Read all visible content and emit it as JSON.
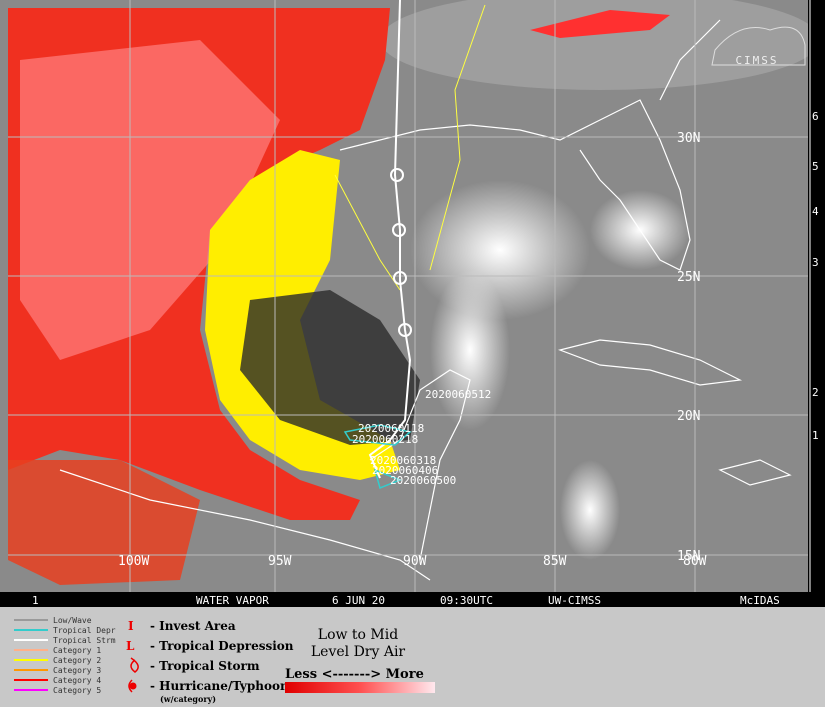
{
  "logo": "CIMSS",
  "lat_labels": [
    "30N",
    "25N",
    "20N",
    "15N"
  ],
  "lon_labels": [
    "100W",
    "95W",
    "90W",
    "85W",
    "80W"
  ],
  "track_labels": [
    "2020060512",
    "2020060118",
    "2020060218",
    "2020060318",
    "2020060406",
    "2020060500"
  ],
  "side_scale": [
    "6",
    "5",
    "4",
    "3",
    "2",
    "1"
  ],
  "status_bar": [
    "1",
    "WATER VAPOR",
    "6 JUN 20",
    "09:30UTC",
    "UW-CIMSS",
    "McIDAS"
  ],
  "legend": {
    "lines": [
      {
        "label": "Low/Wave",
        "color": "#9a9a9a"
      },
      {
        "label": "Tropical Depr",
        "color": "#33cccc"
      },
      {
        "label": "Tropical Strm",
        "color": "#ffffff"
      },
      {
        "label": "Category 1",
        "color": "#ffb08a"
      },
      {
        "label": "Category 2",
        "color": "#ffff00"
      },
      {
        "label": "Category 3",
        "color": "#ff9900"
      },
      {
        "label": "Category 4",
        "color": "#ff0000"
      },
      {
        "label": "Category 5",
        "color": "#ff00ff"
      }
    ],
    "symbols": [
      {
        "symbol": "I",
        "label": "- Invest Area"
      },
      {
        "symbol": "L",
        "label": "- Tropical Depression"
      },
      {
        "label": "- Tropical Storm"
      },
      {
        "label": "- Hurricane/Typhoon",
        "note": "(w/category)"
      }
    ],
    "dry_air": {
      "title_lines": [
        "Low to Mid",
        "Level Dry Air"
      ],
      "scale": "Less <-------> More"
    }
  }
}
